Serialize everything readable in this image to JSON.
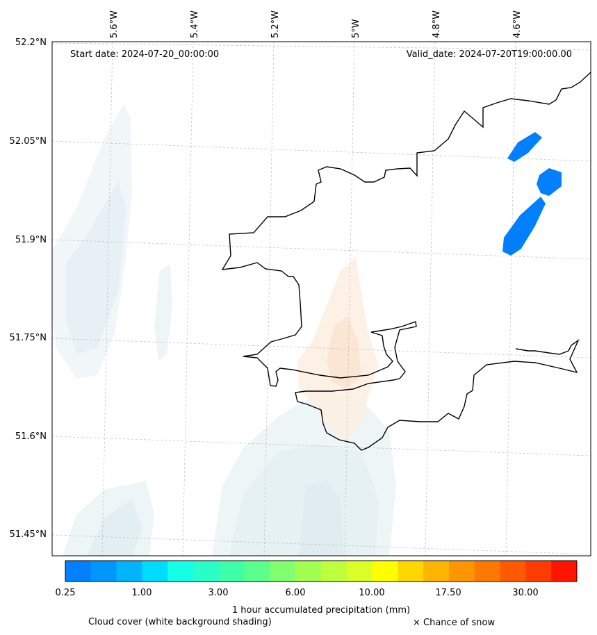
{
  "map": {
    "start_date": "Start date: 2024-07-20_00:00:00",
    "valid_date": "Valid_date: 2024-07-20T19:00:00.00",
    "lon_labels": [
      "5.6°W",
      "5.4°W",
      "5.2°W",
      "5°W",
      "4.8°W",
      "4.6°W"
    ],
    "lat_labels": [
      "52.2°N",
      "52.05°N",
      "51.9°N",
      "51.75°N",
      "51.6°N",
      "51.45°N"
    ]
  },
  "colorbar": {
    "colors": [
      "#0080ff",
      "#0096ff",
      "#00b4ff",
      "#00dcff",
      "#14ffe6",
      "#28ffc8",
      "#3cffa8",
      "#5aff8c",
      "#82ff6e",
      "#a0ff50",
      "#beff3c",
      "#dcff28",
      "#ffff00",
      "#ffd700",
      "#ffb400",
      "#ff9600",
      "#ff7800",
      "#ff5a00",
      "#ff3c00",
      "#ff1400"
    ],
    "tick_labels": [
      "0.25",
      "1.00",
      "3.00",
      "6.00",
      "10.00",
      "17.50",
      "30.00"
    ],
    "title": "1 hour accumulated precipitation (mm)"
  },
  "legend": {
    "cloud_cover": "Cloud cover (white background shading)",
    "snow": "× Chance of snow"
  }
}
